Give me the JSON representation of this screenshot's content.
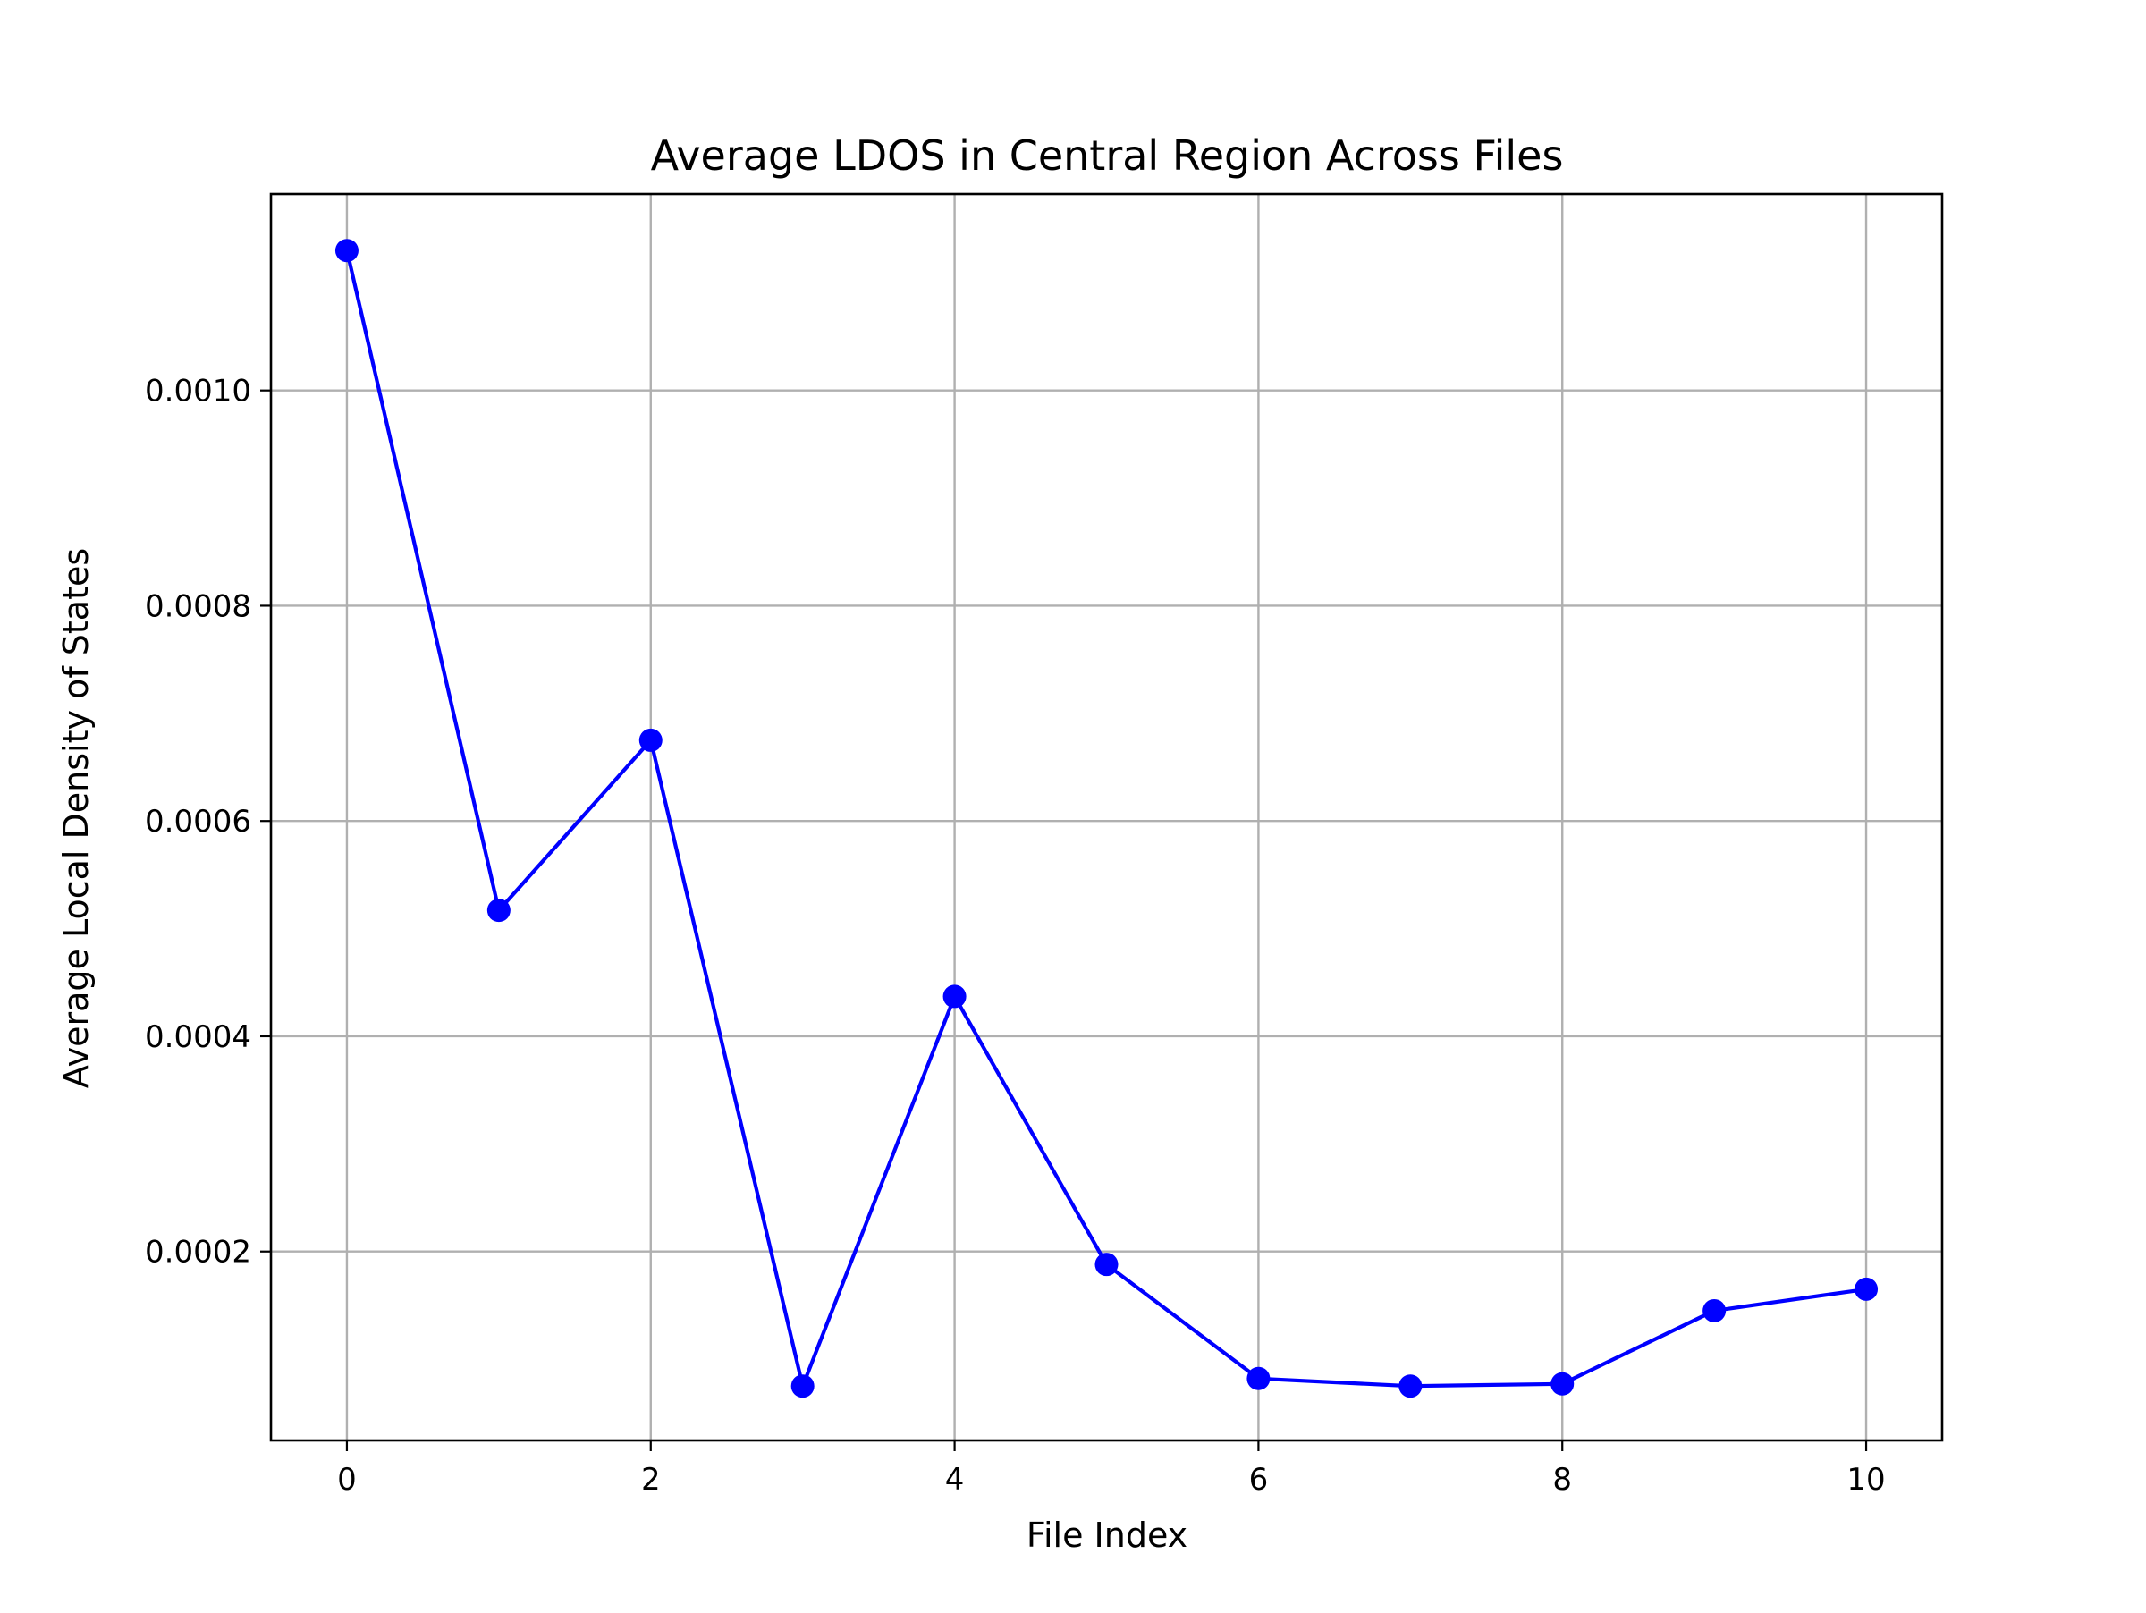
{
  "chart_data": {
    "type": "line",
    "title": "Average LDOS in Central Region Across Files",
    "xlabel": "File Index",
    "ylabel": "Average Local Density of States",
    "x": [
      0,
      1,
      2,
      3,
      4,
      5,
      6,
      7,
      8,
      9,
      10
    ],
    "series": [
      {
        "values": [
          0.00113,
          0.000517,
          0.000675,
          7.5e-05,
          0.000437,
          0.000188,
          8.2e-05,
          7.5e-05,
          7.7e-05,
          0.000145,
          0.000165
        ],
        "color": "#0000ff",
        "marker": "circle"
      }
    ],
    "xlim": [
      -0.5,
      10.5
    ],
    "ylim": [
      2.45e-05,
      0.0011825
    ],
    "xticks": [
      0,
      2,
      4,
      6,
      8,
      10
    ],
    "xtick_labels": [
      "0",
      "2",
      "4",
      "6",
      "8",
      "10"
    ],
    "yticks": [
      0.0002,
      0.0004,
      0.0006,
      0.0008,
      0.001
    ],
    "ytick_labels": [
      "0.0002",
      "0.0004",
      "0.0006",
      "0.0008",
      "0.0010"
    ],
    "grid": true,
    "legend": "none"
  }
}
